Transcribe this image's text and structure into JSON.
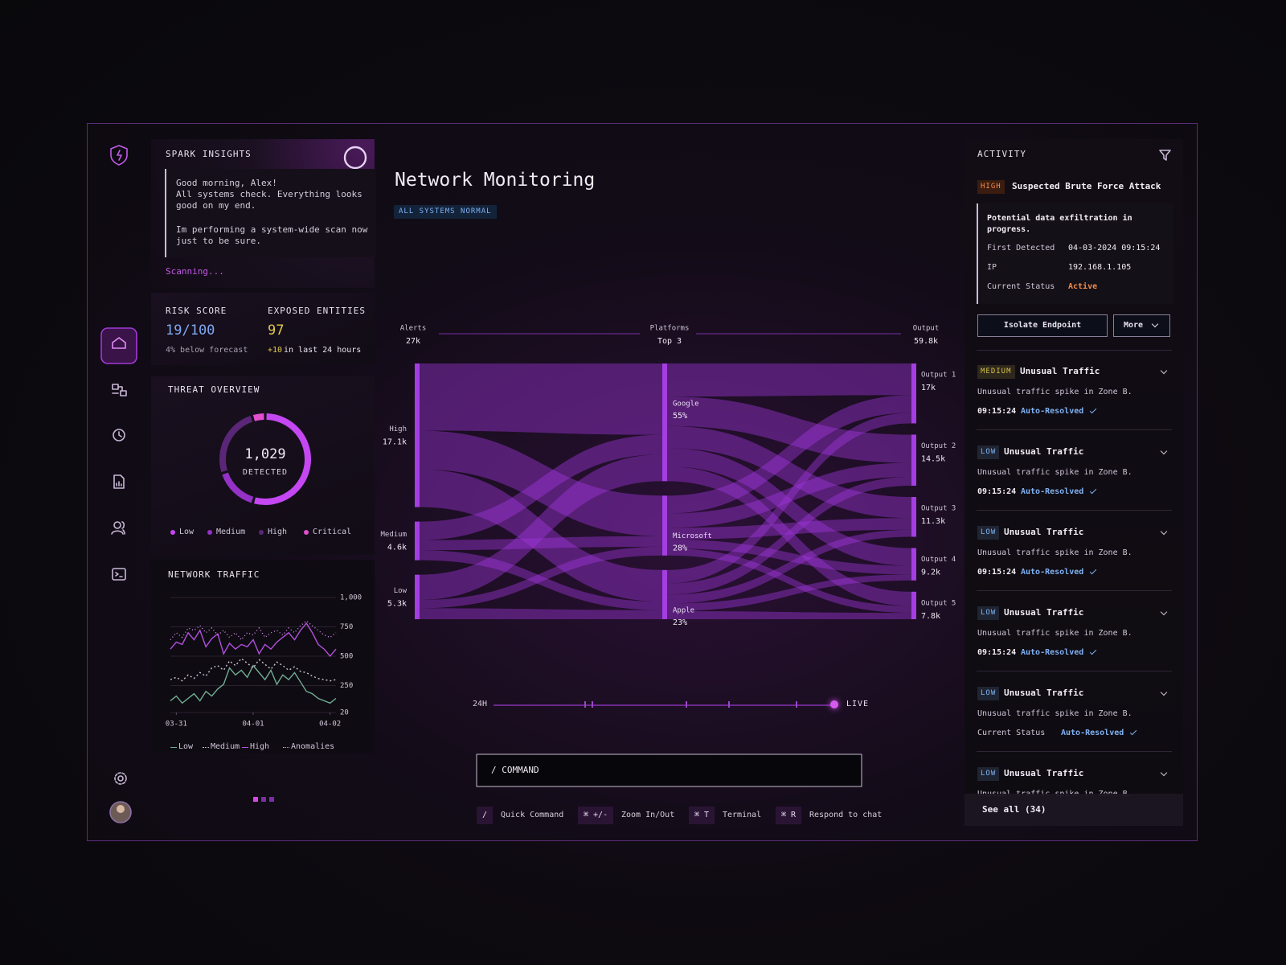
{
  "sidebar": {
    "nav": [
      "home",
      "flows",
      "history",
      "reports",
      "users",
      "terminal"
    ],
    "active": 0
  },
  "insights": {
    "title": "SPARK INSIGHTS",
    "message": [
      "Good morning, Alex!",
      "All systems check. Everything looks",
      "good on my end.",
      "Im performing a system-wide scan now",
      "just to be sure."
    ],
    "status": "Scanning..."
  },
  "risk": {
    "label": "RISK SCORE",
    "value": "19/100",
    "note": "4% below forecast"
  },
  "exposed": {
    "label": "EXPOSED ENTITIES",
    "value": "97",
    "delta": "+10",
    "note": "in last 24 hours"
  },
  "chart_data": [
    {
      "type": "donut",
      "title": "THREAT OVERVIEW",
      "center_value": "1,029",
      "center_label": "DETECTED",
      "series": [
        {
          "name": "Low",
          "color": "#c447f2",
          "value": 560
        },
        {
          "name": "Medium",
          "color": "#9431c6",
          "value": 160
        },
        {
          "name": "High",
          "color": "#5a2677",
          "value": 260
        },
        {
          "name": "Critical",
          "color": "#e24fcf",
          "value": 49
        }
      ]
    },
    {
      "type": "line",
      "title": "NETWORK TRAFFIC",
      "xlim": [
        0,
        28
      ],
      "xticks": [
        {
          "value": 1,
          "label": "03-31"
        },
        {
          "value": 14,
          "label": "04-01"
        },
        {
          "value": 27,
          "label": "04-02"
        }
      ],
      "ylim": [
        20,
        1000
      ],
      "yticks": [
        20,
        250,
        500,
        750,
        {
          "value": 1000,
          "label": "1,000"
        }
      ],
      "grid": true,
      "series": [
        {
          "name": "Low",
          "color": "#6fae92",
          "dash": "none",
          "values": [
            120,
            160,
            100,
            140,
            180,
            120,
            200,
            160,
            220,
            260,
            400,
            340,
            380,
            320,
            420,
            360,
            300,
            380,
            260,
            340,
            300,
            360,
            280,
            200,
            180,
            140,
            120,
            100,
            140
          ]
        },
        {
          "name": "Medium",
          "color": "#c9c3d6",
          "dash": "2 3",
          "values": [
            300,
            320,
            290,
            340,
            310,
            360,
            330,
            400,
            420,
            380,
            460,
            420,
            480,
            440,
            400,
            470,
            430,
            390,
            450,
            420,
            380,
            410,
            370,
            360,
            330,
            310,
            300,
            290,
            300
          ]
        },
        {
          "name": "High",
          "color": "#b44fe0",
          "dash": "none",
          "values": [
            560,
            620,
            600,
            700,
            640,
            720,
            580,
            650,
            690,
            520,
            610,
            560,
            600,
            580,
            640,
            520,
            600,
            560,
            620,
            660,
            700,
            640,
            720,
            780,
            700,
            600,
            560,
            500,
            560
          ]
        },
        {
          "name": "Anomalies",
          "color": "#d58ff0",
          "dash": "1 3",
          "values": [
            640,
            700,
            660,
            740,
            720,
            760,
            700,
            740,
            680,
            720,
            660,
            700,
            640,
            700,
            680,
            740,
            660,
            700,
            720,
            680,
            740,
            700,
            760,
            800,
            760,
            720,
            680,
            660,
            700
          ]
        }
      ]
    },
    {
      "type": "sankey",
      "node_color": "#a43ee2",
      "link_color": "#a238e0",
      "columns": [
        {
          "title": "Alerts",
          "total": "27k",
          "nodes": [
            {
              "name": "High",
              "value": 17100,
              "value_label": "17.1k"
            },
            {
              "name": "Medium",
              "value": 4600,
              "value_label": "4.6k"
            },
            {
              "name": "Low",
              "value": 5300,
              "value_label": "5.3k"
            }
          ]
        },
        {
          "title": "Platforms",
          "total": "Top 3",
          "nodes": [
            {
              "name": "Google",
              "value": 55,
              "value_label": "55%"
            },
            {
              "name": "Microsoft",
              "value": 28,
              "value_label": "28%"
            },
            {
              "name": "Apple",
              "value": 23,
              "value_label": "23%"
            }
          ]
        },
        {
          "title": "Output",
          "total": "59.8k",
          "nodes": [
            {
              "name": "Output 1",
              "value": 17000,
              "value_label": "17k"
            },
            {
              "name": "Output 2",
              "value": 14500,
              "value_label": "14.5k"
            },
            {
              "name": "Output 3",
              "value": 11300,
              "value_label": "11.3k"
            },
            {
              "name": "Output 4",
              "value": 9200,
              "value_label": "9.2k"
            },
            {
              "name": "Output 5",
              "value": 7800,
              "value_label": "7.8k"
            }
          ]
        }
      ],
      "links": [
        {
          "source": "High",
          "target": "Google",
          "value": 8000
        },
        {
          "source": "High",
          "target": "Microsoft",
          "value": 4600
        },
        {
          "source": "High",
          "target": "Apple",
          "value": 4500
        },
        {
          "source": "Medium",
          "target": "Google",
          "value": 2200
        },
        {
          "source": "Medium",
          "target": "Microsoft",
          "value": 1200
        },
        {
          "source": "Medium",
          "target": "Apple",
          "value": 1200
        },
        {
          "source": "Low",
          "target": "Google",
          "value": 3000
        },
        {
          "source": "Low",
          "target": "Microsoft",
          "value": 1000
        },
        {
          "source": "Low",
          "target": "Apple",
          "value": 1300
        },
        {
          "source": "Google",
          "target": "Output 1",
          "value": 9000
        },
        {
          "source": "Google",
          "target": "Output 2",
          "value": 8000
        },
        {
          "source": "Google",
          "target": "Output 3",
          "value": 6000
        },
        {
          "source": "Google",
          "target": "Output 4",
          "value": 5000
        },
        {
          "source": "Google",
          "target": "Output 5",
          "value": 4000
        },
        {
          "source": "Microsoft",
          "target": "Output 1",
          "value": 5000
        },
        {
          "source": "Microsoft",
          "target": "Output 2",
          "value": 4000
        },
        {
          "source": "Microsoft",
          "target": "Output 3",
          "value": 3300
        },
        {
          "source": "Microsoft",
          "target": "Output 4",
          "value": 2500
        },
        {
          "source": "Microsoft",
          "target": "Output 5",
          "value": 2000
        },
        {
          "source": "Apple",
          "target": "Output 1",
          "value": 3000
        },
        {
          "source": "Apple",
          "target": "Output 2",
          "value": 2500
        },
        {
          "source": "Apple",
          "target": "Output 3",
          "value": 2000
        },
        {
          "source": "Apple",
          "target": "Output 4",
          "value": 1700
        },
        {
          "source": "Apple",
          "target": "Output 5",
          "value": 1800
        }
      ]
    }
  ],
  "main": {
    "title": "Network Monitoring",
    "badge": "ALL SYSTEMS NORMAL",
    "timeline": {
      "start": "24H",
      "end": "LIVE"
    },
    "command": "/ COMMAND",
    "shortcuts": [
      {
        "keys": "/",
        "label": "Quick Command"
      },
      {
        "keys": "⌘ +/-",
        "label": "Zoom In/Out"
      },
      {
        "keys": "⌘ T",
        "label": "Terminal"
      },
      {
        "keys": "⌘ R",
        "label": "Respond to chat"
      }
    ]
  },
  "activity": {
    "title": "ACTIVITY",
    "featured": {
      "severity": "HIGH",
      "color": "#f08a4b",
      "title": "Suspected Brute Force Attack",
      "description": "Potential data exfiltration in progress.",
      "fields": [
        {
          "label": "First Detected",
          "value": "04-03-2024 09:15:24"
        },
        {
          "label": "IP",
          "value": "192.168.1.105"
        },
        {
          "label": "Current Status",
          "value": "Active"
        }
      ],
      "status_color": "#f08a4b",
      "actions": [
        "Isolate Endpoint",
        "More"
      ]
    },
    "items": [
      {
        "severity": "MEDIUM",
        "color": "#d6c24a",
        "title": "Unusual Traffic",
        "description": "Unusual traffic spike in Zone B.",
        "time": "09:15:24",
        "status": "Auto-Resolved"
      },
      {
        "severity": "LOW",
        "color": "#7fb2f2",
        "title": "Unusual Traffic",
        "description": "Unusual traffic spike in Zone B.",
        "time": "09:15:24",
        "status": "Auto-Resolved"
      },
      {
        "severity": "LOW",
        "color": "#7fb2f2",
        "title": "Unusual Traffic",
        "description": "Unusual traffic spike in Zone B.",
        "time": "09:15:24",
        "status": "Auto-Resolved"
      },
      {
        "severity": "LOW",
        "color": "#7fb2f2",
        "title": "Unusual Traffic",
        "description": "Unusual traffic spike in Zone B.",
        "time": "09:15:24",
        "status": "Auto-Resolved"
      },
      {
        "severity": "LOW",
        "color": "#7fb2f2",
        "title": "Unusual Traffic",
        "description": "Unusual traffic spike in Zone B.",
        "status_label": "Current Status",
        "status": "Auto-Resolved"
      },
      {
        "severity": "LOW",
        "color": "#7fb2f2",
        "title": "Unusual Traffic",
        "description": "Unusual traffic spike in Zone B."
      }
    ],
    "see_all": "See all (34)"
  }
}
